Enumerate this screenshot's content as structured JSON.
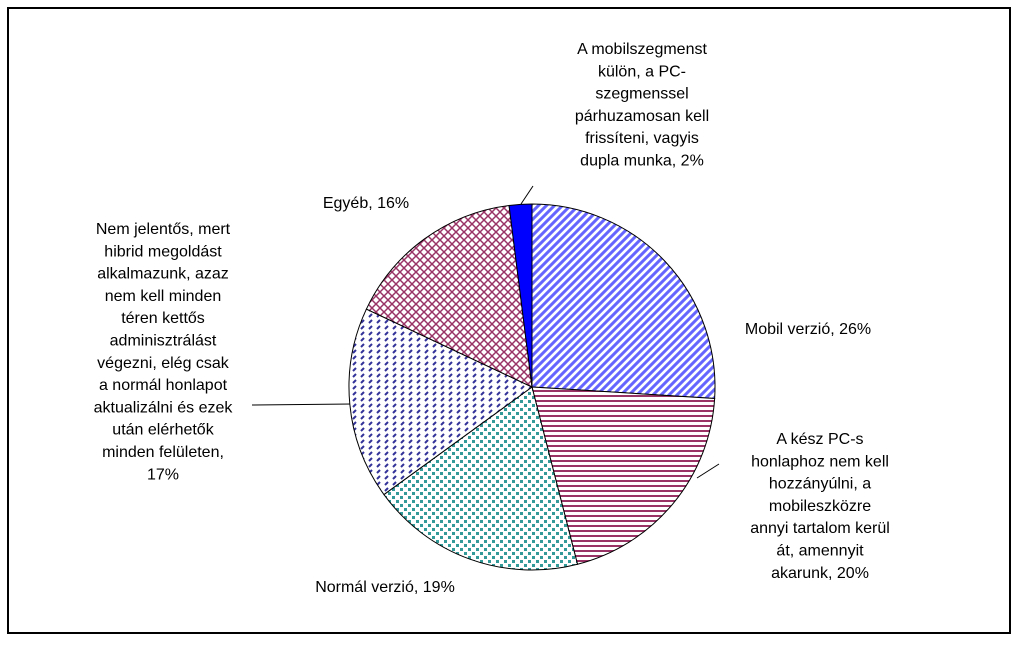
{
  "chart_data": {
    "type": "pie",
    "values": [
      26,
      20,
      19,
      17,
      16,
      2
    ],
    "labels": [
      [
        "Mobil verzió, 26%"
      ],
      [
        "A kész PC-s",
        "honlaphoz nem kell",
        "hozzányúlni, a",
        "mobileszközre",
        "annyi tartalom kerül",
        "át, amennyit",
        "akarunk, 20%"
      ],
      [
        "Normál verzió, 19%"
      ],
      [
        "Nem jelentős, mert",
        "hibrid megoldást",
        "alkalmazunk, azaz",
        "nem kell minden",
        "téren kettős",
        "adminisztrálást",
        "végezni, elég csak",
        "a normál honlapot",
        "aktualizálni és ezek",
        "után elérhetők",
        "minden felületen,",
        "17%"
      ],
      [
        "Egyéb, 16%"
      ],
      [
        "A mobilszegmenst",
        "külön, a PC-",
        "szegmenssel",
        "párhuzamosan kell",
        "frissíteni, vagyis",
        "dupla munka, 2%"
      ]
    ],
    "colors": [
      "#6666ff",
      "#993366",
      "#339999",
      "#333399",
      "#993366",
      "#0000ff"
    ]
  }
}
